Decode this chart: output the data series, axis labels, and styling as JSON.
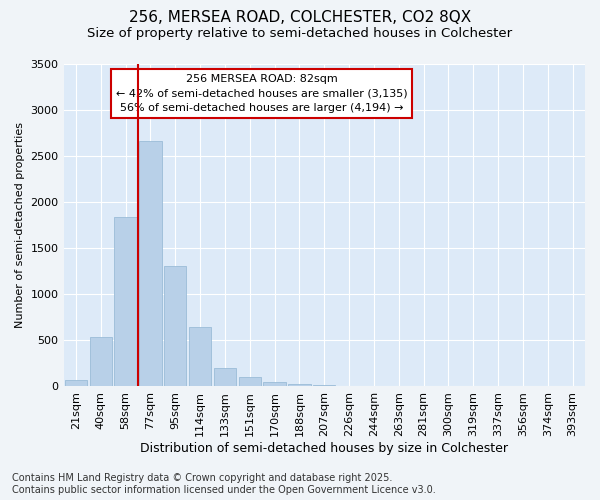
{
  "title1": "256, MERSEA ROAD, COLCHESTER, CO2 8QX",
  "title2": "Size of property relative to semi-detached houses in Colchester",
  "xlabel": "Distribution of semi-detached houses by size in Colchester",
  "ylabel": "Number of semi-detached properties",
  "categories": [
    "21sqm",
    "40sqm",
    "58sqm",
    "77sqm",
    "95sqm",
    "114sqm",
    "133sqm",
    "151sqm",
    "170sqm",
    "188sqm",
    "207sqm",
    "226sqm",
    "244sqm",
    "263sqm",
    "281sqm",
    "300sqm",
    "319sqm",
    "337sqm",
    "356sqm",
    "374sqm",
    "393sqm"
  ],
  "values": [
    65,
    535,
    1840,
    2660,
    1310,
    640,
    200,
    100,
    50,
    30,
    15,
    5,
    0,
    0,
    0,
    0,
    0,
    0,
    0,
    0,
    0
  ],
  "bar_color": "#b8d0e8",
  "bar_edge_color": "#9bbcd8",
  "vline_x_index": 3,
  "vline_color": "#cc0000",
  "annotation_text": "256 MERSEA ROAD: 82sqm\n← 42% of semi-detached houses are smaller (3,135)\n56% of semi-detached houses are larger (4,194) →",
  "annotation_box_facecolor": "#ffffff",
  "annotation_box_edgecolor": "#cc0000",
  "ylim": [
    0,
    3500
  ],
  "yticks": [
    0,
    500,
    1000,
    1500,
    2000,
    2500,
    3000,
    3500
  ],
  "footnote": "Contains HM Land Registry data © Crown copyright and database right 2025.\nContains public sector information licensed under the Open Government Licence v3.0.",
  "fig_bg_color": "#f0f4f8",
  "plot_bg_color": "#ddeaf8",
  "grid_color": "#ffffff",
  "title_fontsize": 11,
  "subtitle_fontsize": 9.5,
  "ylabel_fontsize": 8,
  "xlabel_fontsize": 9,
  "tick_fontsize": 8,
  "annot_fontsize": 8,
  "footnote_fontsize": 7
}
